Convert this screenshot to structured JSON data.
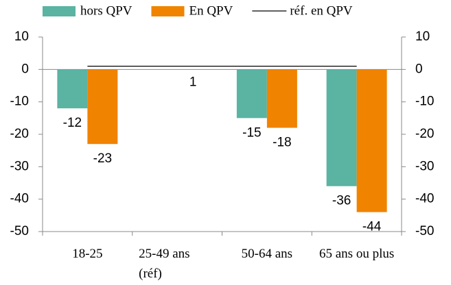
{
  "chart_data": {
    "type": "bar",
    "categories": [
      "18-25",
      "25-49 ans (réf)",
      "50-64 ans",
      "65 ans ou plus"
    ],
    "series": [
      {
        "name": "hors QPV",
        "color": "#5bb3a2",
        "values": [
          -12,
          null,
          -15,
          -36
        ]
      },
      {
        "name": "En QPV",
        "color": "#f08300",
        "values": [
          -23,
          null,
          -18,
          -44
        ]
      },
      {
        "name": "réf. en QPV",
        "type": "line",
        "color": "#000000",
        "values": [
          1,
          1,
          1,
          1
        ],
        "label_at": 1
      }
    ],
    "ylim": [
      -50,
      10
    ],
    "yticks": [
      10,
      0,
      -10,
      -20,
      -30,
      -40,
      -50
    ],
    "y2lim": [
      -50,
      10
    ],
    "y2ticks": [
      10,
      0,
      -10,
      -20,
      -30,
      -40,
      -50
    ],
    "legend": "top"
  }
}
